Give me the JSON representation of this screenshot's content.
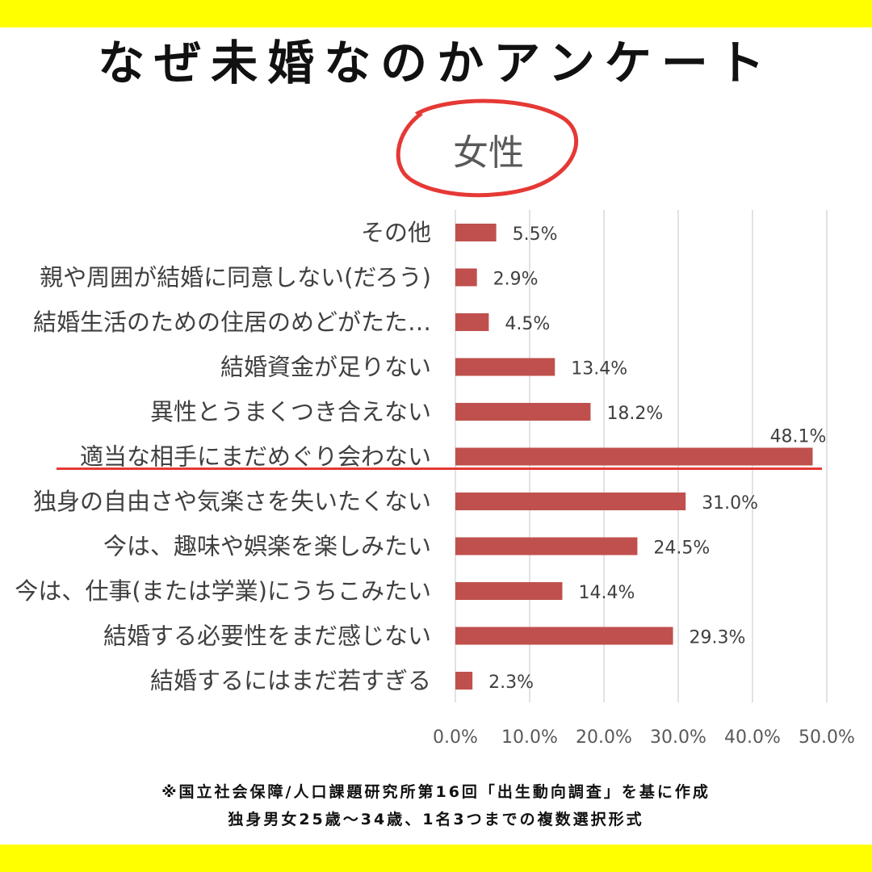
{
  "title": "なぜ未婚なのかアンケート",
  "subtitle": "女性",
  "footnotes": [
    "※国立社会保障/人口課題研究所第16回「出生動向調査」を基に作成",
    "独身男女25歳～34歳、1名3つまでの複数選択形式"
  ],
  "colors": {
    "band": "#ffff00",
    "bar": "#c0504d",
    "highlight": "#e53935",
    "grid": "#d9d9d9"
  },
  "chart_data": {
    "type": "bar",
    "orientation": "horizontal",
    "categories": [
      "その他",
      "親や周囲が結婚に同意しない(だろう)",
      "結婚生活のための住居のめどがたた…",
      "結婚資金が足りない",
      "異性とうまくつき合えない",
      "適当な相手にまだめぐり会わない",
      "独身の自由さや気楽さを失いたくない",
      "今は、趣味や娯楽を楽しみたい",
      "今は、仕事(または学業)にうちこみたい",
      "結婚する必要性をまだ感じない",
      "結婚するにはまだ若すぎる"
    ],
    "values": [
      5.5,
      2.9,
      4.5,
      13.4,
      18.2,
      48.1,
      31.0,
      24.5,
      14.4,
      29.3,
      2.3
    ],
    "value_labels": [
      "5.5%",
      "2.9%",
      "4.5%",
      "13.4%",
      "18.2%",
      "48.1%",
      "31.0%",
      "24.5%",
      "14.4%",
      "29.3%",
      "2.3%"
    ],
    "xlim": [
      0,
      50
    ],
    "xticks": [
      "0.0%",
      "10.0%",
      "20.0%",
      "30.0%",
      "40.0%",
      "50.0%"
    ],
    "xtick_values": [
      0,
      10,
      20,
      30,
      40,
      50
    ],
    "grid": true,
    "highlighted_category": "適当な相手にまだめぐり会わない"
  }
}
